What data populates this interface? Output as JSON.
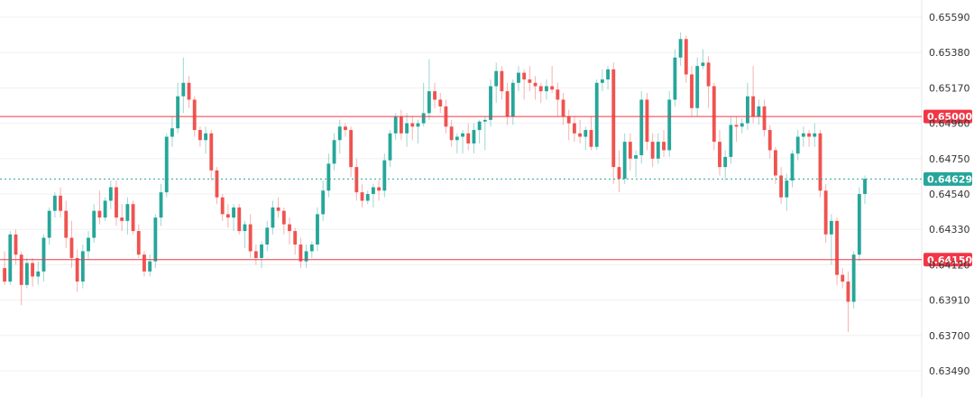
{
  "chart_data": {
    "type": "candlestick",
    "title": "",
    "xlabel": "",
    "ylabel": "",
    "y_axis": {
      "position": "right",
      "ticks": [
        0.6559,
        0.6538,
        0.6517,
        0.6496,
        0.6475,
        0.6454,
        0.6433,
        0.6412,
        0.6391,
        0.637,
        0.6349
      ],
      "tick_labels": [
        "0.65590",
        "0.65380",
        "0.65170",
        "0.64960",
        "0.64750",
        "0.64540",
        "0.64330",
        "0.64120",
        "0.63910",
        "0.63700",
        "0.63490"
      ],
      "range": [
        0.6335,
        0.6573
      ]
    },
    "grid": "horizontal",
    "colors": {
      "up": "#26a69a",
      "down": "#ef5350",
      "level_line": "#f23645",
      "price_line": "#26a69a"
    },
    "horizontal_levels": [
      {
        "value": 0.65,
        "label": "0.65000"
      },
      {
        "value": 0.6415,
        "label": "0.64150"
      }
    ],
    "current_price": {
      "value": 0.64629,
      "label": "0.64629"
    },
    "candles": [
      [
        0.641,
        0.642,
        0.64,
        0.6402
      ],
      [
        0.6402,
        0.6432,
        0.64,
        0.643
      ],
      [
        0.643,
        0.6433,
        0.6412,
        0.6418
      ],
      [
        0.6418,
        0.642,
        0.6388,
        0.64
      ],
      [
        0.64,
        0.6416,
        0.6398,
        0.6413
      ],
      [
        0.6413,
        0.6416,
        0.6399,
        0.6405
      ],
      [
        0.6405,
        0.6414,
        0.64,
        0.6408
      ],
      [
        0.6408,
        0.643,
        0.6402,
        0.6428
      ],
      [
        0.6428,
        0.6446,
        0.6424,
        0.6444
      ],
      [
        0.6444,
        0.6455,
        0.644,
        0.6453
      ],
      [
        0.6453,
        0.6458,
        0.644,
        0.6444
      ],
      [
        0.6444,
        0.645,
        0.6422,
        0.6428
      ],
      [
        0.6428,
        0.6438,
        0.641,
        0.6416
      ],
      [
        0.6416,
        0.6421,
        0.6396,
        0.6402
      ],
      [
        0.6402,
        0.6424,
        0.6398,
        0.642
      ],
      [
        0.642,
        0.6432,
        0.6415,
        0.6428
      ],
      [
        0.6428,
        0.6448,
        0.6425,
        0.6444
      ],
      [
        0.6444,
        0.6456,
        0.6436,
        0.644
      ],
      [
        0.644,
        0.6452,
        0.6438,
        0.645
      ],
      [
        0.645,
        0.6462,
        0.6445,
        0.6458
      ],
      [
        0.6458,
        0.6462,
        0.6435,
        0.644
      ],
      [
        0.644,
        0.6448,
        0.6432,
        0.6438
      ],
      [
        0.6438,
        0.6452,
        0.643,
        0.6448
      ],
      [
        0.6448,
        0.645,
        0.643,
        0.6432
      ],
      [
        0.6432,
        0.6436,
        0.6416,
        0.6418
      ],
      [
        0.6418,
        0.642,
        0.6405,
        0.6408
      ],
      [
        0.6408,
        0.6418,
        0.6405,
        0.6414
      ],
      [
        0.6414,
        0.6442,
        0.641,
        0.644
      ],
      [
        0.644,
        0.646,
        0.6435,
        0.6455
      ],
      [
        0.6455,
        0.649,
        0.6452,
        0.6488
      ],
      [
        0.6488,
        0.65,
        0.6482,
        0.6493
      ],
      [
        0.6493,
        0.652,
        0.649,
        0.6512
      ],
      [
        0.6512,
        0.6535,
        0.6502,
        0.652
      ],
      [
        0.652,
        0.6524,
        0.6505,
        0.651
      ],
      [
        0.651,
        0.6512,
        0.6488,
        0.6492
      ],
      [
        0.6492,
        0.6494,
        0.6482,
        0.6486
      ],
      [
        0.6486,
        0.6494,
        0.6478,
        0.649
      ],
      [
        0.649,
        0.6492,
        0.6462,
        0.6468
      ],
      [
        0.6468,
        0.647,
        0.6448,
        0.6452
      ],
      [
        0.6452,
        0.6454,
        0.6438,
        0.6442
      ],
      [
        0.6442,
        0.6448,
        0.6434,
        0.644
      ],
      [
        0.644,
        0.6448,
        0.6432,
        0.6446
      ],
      [
        0.6446,
        0.6448,
        0.643,
        0.6432
      ],
      [
        0.6432,
        0.6438,
        0.6422,
        0.6436
      ],
      [
        0.6436,
        0.6442,
        0.6416,
        0.642
      ],
      [
        0.642,
        0.6424,
        0.6412,
        0.6416
      ],
      [
        0.6416,
        0.6426,
        0.641,
        0.6424
      ],
      [
        0.6424,
        0.6438,
        0.642,
        0.6434
      ],
      [
        0.6434,
        0.645,
        0.643,
        0.6446
      ],
      [
        0.6446,
        0.6452,
        0.644,
        0.6444
      ],
      [
        0.6444,
        0.6446,
        0.643,
        0.6436
      ],
      [
        0.6436,
        0.644,
        0.6424,
        0.6432
      ],
      [
        0.6432,
        0.6434,
        0.6418,
        0.6424
      ],
      [
        0.6424,
        0.6428,
        0.641,
        0.6414
      ],
      [
        0.6414,
        0.6424,
        0.641,
        0.642
      ],
      [
        0.642,
        0.6426,
        0.6416,
        0.6424
      ],
      [
        0.6424,
        0.6446,
        0.642,
        0.6442
      ],
      [
        0.6442,
        0.6462,
        0.6438,
        0.6456
      ],
      [
        0.6456,
        0.6478,
        0.6452,
        0.6472
      ],
      [
        0.6472,
        0.649,
        0.6468,
        0.6486
      ],
      [
        0.6486,
        0.6498,
        0.6478,
        0.6494
      ],
      [
        0.6494,
        0.6496,
        0.6488,
        0.6492
      ],
      [
        0.6492,
        0.6494,
        0.6464,
        0.647
      ],
      [
        0.647,
        0.6475,
        0.645,
        0.6455
      ],
      [
        0.6455,
        0.646,
        0.6446,
        0.645
      ],
      [
        0.645,
        0.6456,
        0.6448,
        0.6454
      ],
      [
        0.6454,
        0.646,
        0.6446,
        0.6458
      ],
      [
        0.6458,
        0.6462,
        0.645,
        0.6456
      ],
      [
        0.6456,
        0.6478,
        0.6452,
        0.6474
      ],
      [
        0.6474,
        0.6492,
        0.647,
        0.649
      ],
      [
        0.649,
        0.6502,
        0.6486,
        0.65
      ],
      [
        0.65,
        0.6504,
        0.6486,
        0.649
      ],
      [
        0.649,
        0.6502,
        0.6482,
        0.6496
      ],
      [
        0.6496,
        0.65,
        0.6486,
        0.6494
      ],
      [
        0.6494,
        0.6498,
        0.6484,
        0.6496
      ],
      [
        0.6496,
        0.652,
        0.6494,
        0.6502
      ],
      [
        0.6502,
        0.6534,
        0.6498,
        0.6515
      ],
      [
        0.6515,
        0.652,
        0.6505,
        0.651
      ],
      [
        0.651,
        0.6514,
        0.6502,
        0.6506
      ],
      [
        0.6506,
        0.651,
        0.649,
        0.6494
      ],
      [
        0.6494,
        0.6498,
        0.6482,
        0.6486
      ],
      [
        0.6486,
        0.649,
        0.6478,
        0.6488
      ],
      [
        0.6488,
        0.6492,
        0.6478,
        0.649
      ],
      [
        0.649,
        0.6496,
        0.648,
        0.6484
      ],
      [
        0.6484,
        0.6496,
        0.6478,
        0.6492
      ],
      [
        0.6492,
        0.6498,
        0.6484,
        0.6497
      ],
      [
        0.6497,
        0.65,
        0.648,
        0.6498
      ],
      [
        0.6498,
        0.6522,
        0.6494,
        0.6518
      ],
      [
        0.6518,
        0.6532,
        0.6508,
        0.6527
      ],
      [
        0.6527,
        0.653,
        0.651,
        0.6515
      ],
      [
        0.6515,
        0.652,
        0.6495,
        0.65
      ],
      [
        0.65,
        0.6522,
        0.6495,
        0.652
      ],
      [
        0.652,
        0.653,
        0.6515,
        0.6526
      ],
      [
        0.6526,
        0.6528,
        0.651,
        0.6522
      ],
      [
        0.6522,
        0.653,
        0.6515,
        0.652
      ],
      [
        0.652,
        0.6524,
        0.651,
        0.6518
      ],
      [
        0.6518,
        0.652,
        0.6508,
        0.6515
      ],
      [
        0.6515,
        0.6522,
        0.651,
        0.6518
      ],
      [
        0.6518,
        0.653,
        0.6514,
        0.6516
      ],
      [
        0.6516,
        0.652,
        0.65,
        0.651
      ],
      [
        0.651,
        0.6514,
        0.6495,
        0.65
      ],
      [
        0.65,
        0.6504,
        0.6486,
        0.6496
      ],
      [
        0.6496,
        0.65,
        0.6485,
        0.649
      ],
      [
        0.649,
        0.6498,
        0.6484,
        0.6488
      ],
      [
        0.6488,
        0.6494,
        0.648,
        0.6492
      ],
      [
        0.6492,
        0.65,
        0.648,
        0.6482
      ],
      [
        0.6482,
        0.6522,
        0.648,
        0.652
      ],
      [
        0.652,
        0.6528,
        0.6515,
        0.6522
      ],
      [
        0.6522,
        0.653,
        0.6516,
        0.6528
      ],
      [
        0.6528,
        0.6532,
        0.646,
        0.647
      ],
      [
        0.647,
        0.648,
        0.6455,
        0.6463
      ],
      [
        0.6463,
        0.649,
        0.646,
        0.6485
      ],
      [
        0.6485,
        0.649,
        0.6468,
        0.6475
      ],
      [
        0.6475,
        0.648,
        0.6464,
        0.6477
      ],
      [
        0.6477,
        0.6515,
        0.6472,
        0.651
      ],
      [
        0.651,
        0.6514,
        0.648,
        0.6485
      ],
      [
        0.6485,
        0.649,
        0.647,
        0.6475
      ],
      [
        0.6475,
        0.649,
        0.6472,
        0.6485
      ],
      [
        0.6485,
        0.6492,
        0.6476,
        0.648
      ],
      [
        0.648,
        0.6515,
        0.6476,
        0.651
      ],
      [
        0.651,
        0.654,
        0.6506,
        0.6535
      ],
      [
        0.6535,
        0.655,
        0.653,
        0.6546
      ],
      [
        0.6546,
        0.6548,
        0.652,
        0.6525
      ],
      [
        0.6525,
        0.653,
        0.65,
        0.6505
      ],
      [
        0.6505,
        0.6535,
        0.65,
        0.653
      ],
      [
        0.653,
        0.654,
        0.6528,
        0.6532
      ],
      [
        0.6532,
        0.6536,
        0.6505,
        0.6518
      ],
      [
        0.6518,
        0.652,
        0.648,
        0.6485
      ],
      [
        0.6485,
        0.6492,
        0.6465,
        0.647
      ],
      [
        0.647,
        0.648,
        0.6462,
        0.6476
      ],
      [
        0.6476,
        0.65,
        0.6472,
        0.6495
      ],
      [
        0.6495,
        0.65,
        0.6485,
        0.6494
      ],
      [
        0.6494,
        0.6499,
        0.649,
        0.6496
      ],
      [
        0.6496,
        0.652,
        0.6492,
        0.6512
      ],
      [
        0.6512,
        0.653,
        0.6496,
        0.65
      ],
      [
        0.65,
        0.651,
        0.6495,
        0.6506
      ],
      [
        0.6506,
        0.651,
        0.6488,
        0.6492
      ],
      [
        0.6492,
        0.6495,
        0.6475,
        0.648
      ],
      [
        0.648,
        0.6482,
        0.646,
        0.6465
      ],
      [
        0.6465,
        0.647,
        0.6448,
        0.6452
      ],
      [
        0.6452,
        0.6466,
        0.6444,
        0.6462
      ],
      [
        0.6462,
        0.648,
        0.6458,
        0.6478
      ],
      [
        0.6478,
        0.6492,
        0.6474,
        0.6488
      ],
      [
        0.6488,
        0.6494,
        0.6482,
        0.649
      ],
      [
        0.649,
        0.6492,
        0.6482,
        0.6488
      ],
      [
        0.6488,
        0.6496,
        0.6482,
        0.649
      ],
      [
        0.649,
        0.6492,
        0.6452,
        0.6456
      ],
      [
        0.6456,
        0.646,
        0.6425,
        0.643
      ],
      [
        0.643,
        0.6442,
        0.6412,
        0.6438
      ],
      [
        0.6438,
        0.644,
        0.64,
        0.6406
      ],
      [
        0.6406,
        0.641,
        0.6398,
        0.6402
      ],
      [
        0.6402,
        0.6408,
        0.6372,
        0.639
      ],
      [
        0.639,
        0.642,
        0.6386,
        0.6418
      ],
      [
        0.6418,
        0.6458,
        0.6414,
        0.6454
      ],
      [
        0.6454,
        0.6465,
        0.6448,
        0.6463
      ]
    ]
  }
}
